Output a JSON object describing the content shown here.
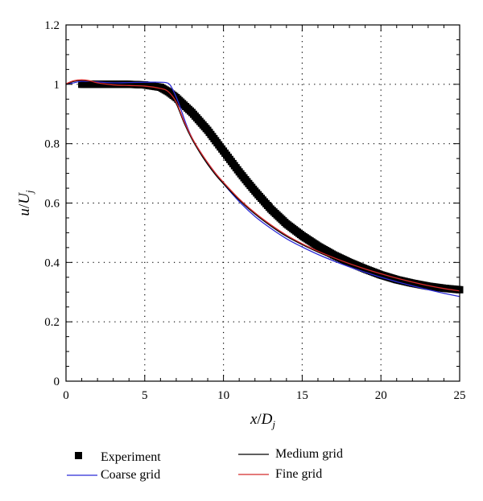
{
  "chart_data": {
    "type": "line",
    "title": "",
    "xlabel": "x/D_j",
    "ylabel": "u/U_j",
    "xlim": [
      0,
      25
    ],
    "ylim": [
      0,
      1.2
    ],
    "xticks": [
      0,
      5,
      10,
      15,
      20,
      25
    ],
    "yticks": [
      0,
      0.2,
      0.4,
      0.6,
      0.8,
      1,
      1.2
    ],
    "xtick_labels": [
      "0",
      "5",
      "10",
      "15",
      "20",
      "25"
    ],
    "ytick_labels": [
      "0",
      "0.2",
      "0.4",
      "0.6",
      "0.8",
      "1",
      "1.2"
    ],
    "grid": true,
    "legend_position": "bottom",
    "series": [
      {
        "name": "Experiment",
        "style": "square-markers",
        "color": "#000000",
        "x": [
          1.0,
          2.0,
          3.0,
          4.0,
          5.0,
          6.0,
          6.5,
          7.0,
          7.5,
          8.0,
          8.5,
          9.0,
          9.5,
          10.0,
          10.5,
          11.0,
          11.5,
          12.0,
          12.5,
          13.0,
          14.0,
          15.0,
          16.0,
          17.0,
          18.0,
          19.0,
          20.0,
          21.0,
          22.0,
          23.0,
          24.0,
          25.0
        ],
        "y": [
          1.0,
          1.0,
          1.0,
          1.0,
          0.998,
          0.99,
          0.975,
          0.955,
          0.93,
          0.905,
          0.875,
          0.845,
          0.81,
          0.775,
          0.74,
          0.705,
          0.672,
          0.64,
          0.61,
          0.58,
          0.53,
          0.49,
          0.455,
          0.425,
          0.4,
          0.378,
          0.358,
          0.342,
          0.33,
          0.32,
          0.313,
          0.308
        ]
      },
      {
        "name": "Coarse grid",
        "style": "line",
        "color": "#2b2bd6",
        "x": [
          0.0,
          0.5,
          1.0,
          2.0,
          3.0,
          4.0,
          5.0,
          6.0,
          6.5,
          6.8,
          7.2,
          7.6,
          8.0,
          8.5,
          9.0,
          9.5,
          10.0,
          11.0,
          12.0,
          13.0,
          14.0,
          15.0,
          16.0,
          17.0,
          18.0,
          19.0,
          20.0,
          21.0,
          22.0,
          23.0,
          24.0,
          25.0
        ],
        "y": [
          1.0,
          1.005,
          1.01,
          1.008,
          1.005,
          1.006,
          1.007,
          1.007,
          1.003,
          0.98,
          0.93,
          0.87,
          0.82,
          0.775,
          0.735,
          0.7,
          0.665,
          0.605,
          0.555,
          0.515,
          0.48,
          0.452,
          0.427,
          0.405,
          0.385,
          0.367,
          0.35,
          0.335,
          0.321,
          0.308,
          0.296,
          0.285
        ]
      },
      {
        "name": "Medium grid",
        "style": "line",
        "color": "#000000",
        "x": [
          0.0,
          0.5,
          1.0,
          1.5,
          2.0,
          3.0,
          4.0,
          5.0,
          6.0,
          6.5,
          7.0,
          7.5,
          8.0,
          8.5,
          9.0,
          9.5,
          10.0,
          11.0,
          12.0,
          13.0,
          14.0,
          15.0,
          16.0,
          17.0,
          18.0,
          19.0,
          20.0,
          21.0,
          22.0,
          23.0,
          24.0,
          25.0
        ],
        "y": [
          1.0,
          1.01,
          1.013,
          1.01,
          1.003,
          0.996,
          0.995,
          0.993,
          0.985,
          0.975,
          0.935,
          0.87,
          0.815,
          0.77,
          0.73,
          0.695,
          0.665,
          0.61,
          0.563,
          0.523,
          0.488,
          0.46,
          0.435,
          0.413,
          0.393,
          0.375,
          0.358,
          0.343,
          0.33,
          0.318,
          0.308,
          0.3
        ]
      },
      {
        "name": "Fine grid",
        "style": "line",
        "color": "#d42a2a",
        "x": [
          0.0,
          0.5,
          1.0,
          1.5,
          2.0,
          3.0,
          4.0,
          5.0,
          6.0,
          6.5,
          7.0,
          7.5,
          8.0,
          8.5,
          9.0,
          9.5,
          10.0,
          11.0,
          12.0,
          13.0,
          14.0,
          15.0,
          16.0,
          17.0,
          18.0,
          19.0,
          20.0,
          21.0,
          22.0,
          23.0,
          24.0,
          25.0
        ],
        "y": [
          1.002,
          1.012,
          1.015,
          1.012,
          1.005,
          0.998,
          0.996,
          0.994,
          0.986,
          0.975,
          0.94,
          0.875,
          0.82,
          0.775,
          0.736,
          0.7,
          0.67,
          0.614,
          0.567,
          0.527,
          0.492,
          0.463,
          0.438,
          0.416,
          0.396,
          0.378,
          0.362,
          0.347,
          0.334,
          0.322,
          0.312,
          0.304
        ]
      }
    ]
  },
  "legend": {
    "items": [
      {
        "label": "Experiment",
        "kind": "square",
        "color": "#000000"
      },
      {
        "label": "Coarse grid",
        "kind": "line",
        "color": "#2b2bd6"
      },
      {
        "label": "Medium grid",
        "kind": "line",
        "color": "#000000"
      },
      {
        "label": "Fine grid",
        "kind": "line",
        "color": "#d42a2a"
      }
    ]
  }
}
